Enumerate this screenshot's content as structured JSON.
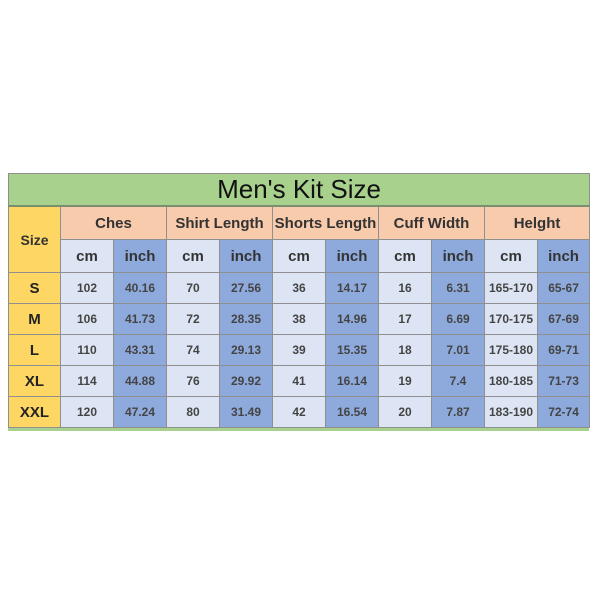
{
  "title": "Men's Kit Size",
  "size_header": "Size",
  "groups": [
    "Ches",
    "Shirt Length",
    "Shorts Length",
    "Cuff Width",
    "Helght"
  ],
  "units": [
    "cm",
    "inch"
  ],
  "rows": [
    {
      "size": "S",
      "values": [
        "102",
        "40.16",
        "70",
        "27.56",
        "36",
        "14.17",
        "16",
        "6.31",
        "165-170",
        "65-67"
      ]
    },
    {
      "size": "M",
      "values": [
        "106",
        "41.73",
        "72",
        "28.35",
        "38",
        "14.96",
        "17",
        "6.69",
        "170-175",
        "67-69"
      ]
    },
    {
      "size": "L",
      "values": [
        "110",
        "43.31",
        "74",
        "29.13",
        "39",
        "15.35",
        "18",
        "7.01",
        "175-180",
        "69-71"
      ]
    },
    {
      "size": "XL",
      "values": [
        "114",
        "44.88",
        "76",
        "29.92",
        "41",
        "16.14",
        "19",
        "7.4",
        "180-185",
        "71-73"
      ]
    },
    {
      "size": "XXL",
      "values": [
        "120",
        "47.24",
        "80",
        "31.49",
        "42",
        "16.54",
        "20",
        "7.87",
        "183-190",
        "72-74"
      ]
    }
  ],
  "colors": {
    "title_bg": "#a9d18e",
    "size_bg": "#fdd663",
    "group_bg": "#f8cbad",
    "cm_bg": "#dde5f4",
    "inch_bg": "#8eaadc"
  }
}
